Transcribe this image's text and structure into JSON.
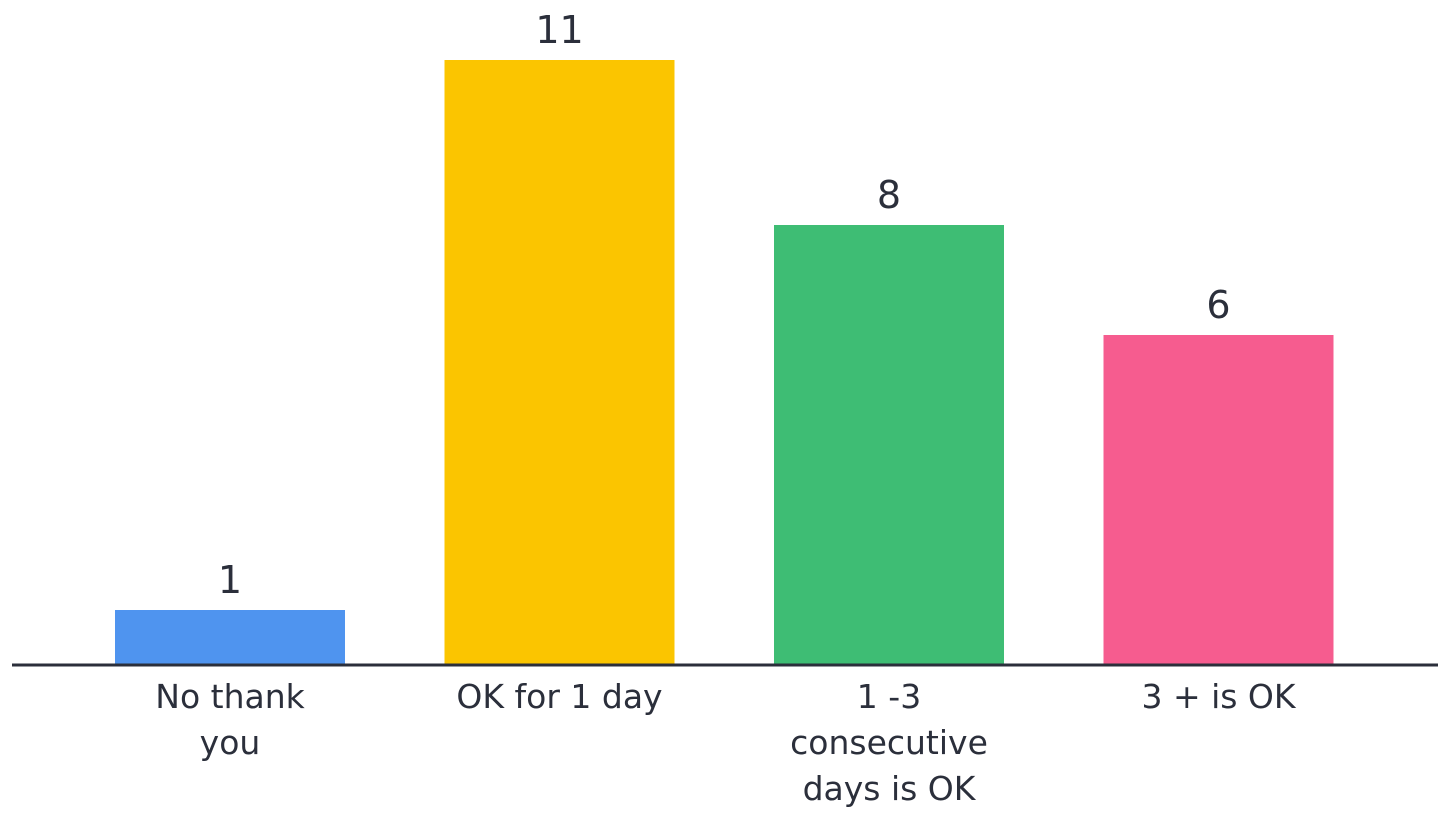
{
  "chart_data": {
    "type": "bar",
    "categories": [
      [
        "No thank",
        "you"
      ],
      [
        "OK for 1 day"
      ],
      [
        "1 -3",
        "consecutive",
        "days is OK"
      ],
      [
        "3 + is OK"
      ]
    ],
    "values": [
      1,
      11,
      8,
      6
    ],
    "value_labels": [
      "1",
      "11",
      "8",
      "6"
    ],
    "colors": [
      "#4f94ef",
      "#fbc500",
      "#3ebd74",
      "#f65c8f"
    ],
    "baseline_color": "#2b2f3b",
    "ylim": [
      0,
      11
    ],
    "grid": false,
    "legend": "none"
  }
}
